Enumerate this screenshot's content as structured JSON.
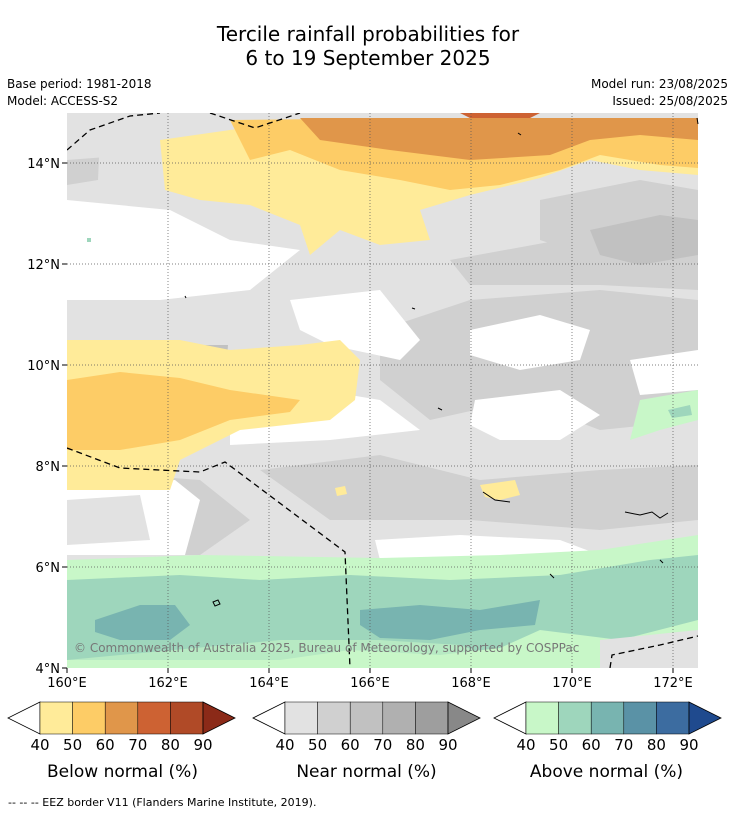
{
  "title": {
    "line1": "Tercile rainfall probabilities for",
    "line2": "6 to 19 September 2025"
  },
  "meta": {
    "base_period": "Base period: 1981-2018",
    "model": "Model: ACCESS-S2",
    "model_run": "Model run: 23/08/2025",
    "issued": "Issued: 25/08/2025"
  },
  "map": {
    "lat_labels": [
      "14°N",
      "12°N",
      "10°N",
      "8°N",
      "6°N",
      "4°N"
    ],
    "lon_labels": [
      "160°E",
      "162°E",
      "164°E",
      "166°E",
      "168°E",
      "170°E",
      "172°E"
    ],
    "copyright": "© Commonwealth of Australia 2025, Bureau of Meteorology, supported by COSPPac",
    "grid_lines": "dotted"
  },
  "colorbars": [
    {
      "label": "Below normal (%)",
      "ticks": [
        "40",
        "50",
        "60",
        "70",
        "80",
        "90"
      ],
      "colors": [
        "#ffeb99",
        "#fdcc66",
        "#e0964a",
        "#cd6233",
        "#b04a27",
        "#8b2a18"
      ]
    },
    {
      "label": "Near normal (%)",
      "ticks": [
        "40",
        "50",
        "60",
        "70",
        "80",
        "90"
      ],
      "colors": [
        "#e2e2e2",
        "#d0d0d0",
        "#c1c1c1",
        "#b0b0b0",
        "#9e9e9e",
        "#888888"
      ]
    },
    {
      "label": "Above normal (%)",
      "ticks": [
        "40",
        "50",
        "60",
        "70",
        "80",
        "90"
      ],
      "colors": [
        "#c8f7c8",
        "#9ed6bc",
        "#78b4b0",
        "#5a92a6",
        "#3c6ca0",
        "#1f4a8e"
      ]
    }
  ],
  "footer": "--  --  -- EEZ border V11 (Flanders Marine Institute, 2019)."
}
